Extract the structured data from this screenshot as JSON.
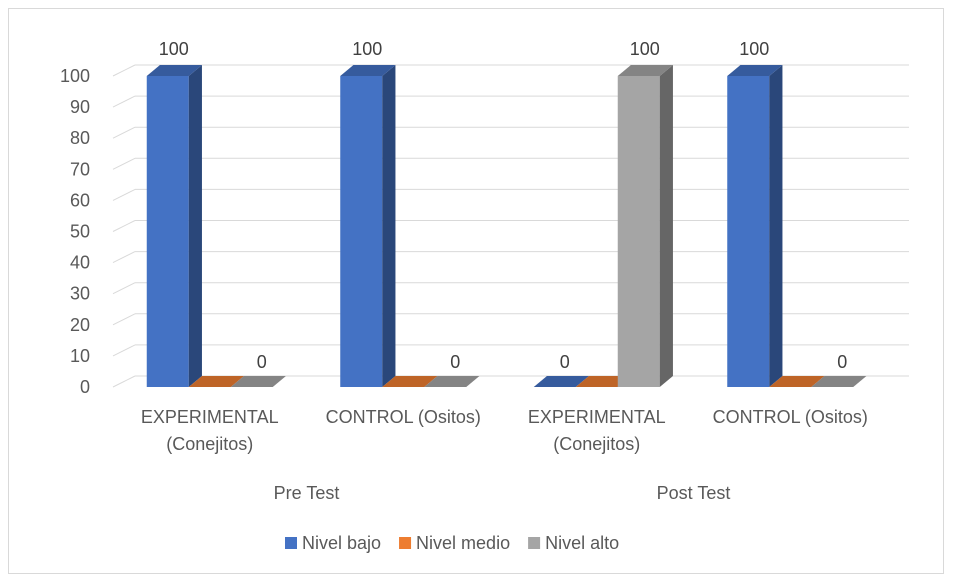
{
  "chart_data": {
    "type": "bar",
    "title": "",
    "xlabel": "",
    "ylabel": "",
    "ylim": [
      0,
      100
    ],
    "yticks": [
      "0",
      "10",
      "20",
      "30",
      "40",
      "50",
      "60",
      "70",
      "80",
      "90",
      "100"
    ],
    "groups": [
      {
        "label": "Pre Test",
        "categories": [
          "EXPERIMENTAL|(Conejitos)",
          "CONTROL (Ositos)"
        ]
      },
      {
        "label": "Post Test",
        "categories": [
          "EXPERIMENTAL|(Conejitos)",
          "CONTROL (Ositos)"
        ]
      }
    ],
    "categories": [
      "EXPERIMENTAL (Conejitos)",
      "CONTROL (Ositos)",
      "EXPERIMENTAL (Conejitos)",
      "CONTROL (Ositos)"
    ],
    "series": [
      {
        "name": "Nivel bajo",
        "color": "#4472C4",
        "values": [
          100,
          100,
          0,
          100
        ]
      },
      {
        "name": "Nivel medio",
        "color": "#ED7D31",
        "values": [
          0,
          0,
          0,
          0
        ]
      },
      {
        "name": "Nivel alto",
        "color": "#A5A5A5",
        "values": [
          0,
          0,
          100,
          0
        ]
      }
    ],
    "data_labels": [
      {
        "category_index": 0,
        "series_index": 0,
        "text": "100"
      },
      {
        "category_index": 0,
        "series_index": 2,
        "text": "0"
      },
      {
        "category_index": 1,
        "series_index": 0,
        "text": "100"
      },
      {
        "category_index": 1,
        "series_index": 2,
        "text": "0"
      },
      {
        "category_index": 2,
        "series_index": 0,
        "text": "0"
      },
      {
        "category_index": 2,
        "series_index": 2,
        "text": "100"
      },
      {
        "category_index": 3,
        "series_index": 0,
        "text": "100"
      },
      {
        "category_index": 3,
        "series_index": 2,
        "text": "0"
      }
    ],
    "grid": true,
    "legend_position": "bottom"
  }
}
